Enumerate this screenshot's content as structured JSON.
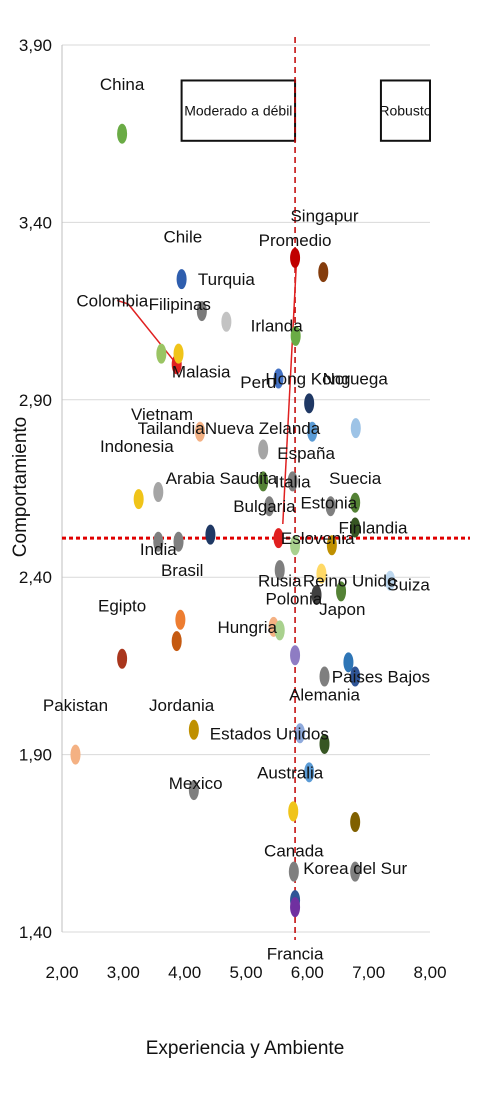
{
  "chart_data": {
    "type": "scatter",
    "xlabel": "Experiencia y Ambiente",
    "ylabel": "Comportamiento",
    "xlim": [
      2.0,
      8.0
    ],
    "ylim": [
      1.4,
      3.9
    ],
    "xticks": [
      "2,00",
      "3,00",
      "4,00",
      "5,00",
      "6,00",
      "7,00",
      "8,00"
    ],
    "yticks": [
      "1,40",
      "1,90",
      "2,40",
      "2,90",
      "3,40",
      "3,90"
    ],
    "xtick_values": [
      2,
      3,
      4,
      5,
      6,
      7,
      8
    ],
    "ytick_values": [
      1.4,
      1.9,
      2.4,
      2.9,
      3.4,
      3.9
    ],
    "grid": "horizontal",
    "reference_lines": {
      "x": 5.8,
      "y": 2.51
    },
    "boxes": [
      {
        "label": "Moderado a débil",
        "x": [
          3.95,
          5.8
        ],
        "y": [
          3.63,
          3.8
        ]
      },
      {
        "label": "Robusto",
        "x": [
          7.2,
          8.0
        ],
        "y": [
          3.63,
          3.8
        ]
      }
    ],
    "points": [
      {
        "label": "China",
        "x": 2.98,
        "y": 3.65,
        "color": "#6aab45",
        "lx": 2.98,
        "ly": 3.79
      },
      {
        "label": "Chile",
        "x": 3.95,
        "y": 3.24,
        "color": "#2f5eae",
        "lx": 3.97,
        "ly": 3.36
      },
      {
        "label": "Turquia",
        "x": 4.68,
        "y": 3.12,
        "color": "#c3c3c3",
        "lx": 4.68,
        "ly": 3.24
      },
      {
        "label": "Filipinas",
        "x": 4.28,
        "y": 3.15,
        "color": "#7a7a7a",
        "lx": 3.92,
        "ly": 3.17
      },
      {
        "label": "Colombia",
        "x": 3.87,
        "y": 3.0,
        "color": "#e02020",
        "lx": 2.82,
        "ly": 3.18
      },
      {
        "label": "Malasia",
        "x": 3.9,
        "y": 3.03,
        "color": "#f0c419",
        "lx": 4.27,
        "ly": 2.98
      },
      {
        "label": "Singapur",
        "x": 6.26,
        "y": 3.26,
        "color": "#843c0c",
        "lx": 6.28,
        "ly": 3.42
      },
      {
        "label": "Promedio",
        "x": 5.8,
        "y": 3.3,
        "color": "#c00000",
        "lx": 5.8,
        "ly": 3.35
      },
      {
        "label": "Irlanda",
        "x": 5.81,
        "y": 3.08,
        "color": "#6aab45",
        "lx": 5.5,
        "ly": 3.11
      },
      {
        "label": "Peru",
        "x": 5.53,
        "y": 2.96,
        "color": "#4472c4",
        "lx": 5.2,
        "ly": 2.95
      },
      {
        "label": "Hong Kong",
        "x": 6.03,
        "y": 2.89,
        "color": "#1f3864",
        "lx": 6.01,
        "ly": 2.96
      },
      {
        "label": "Noruega",
        "x": 6.79,
        "y": 2.82,
        "color": "#9dc3e6",
        "lx": 6.78,
        "ly": 2.96
      },
      {
        "label": "Vietnam",
        "x": 3.62,
        "y": 3.03,
        "color": "#9ac463",
        "lx": 3.63,
        "ly": 2.86
      },
      {
        "label": "Tailandia",
        "x": 4.25,
        "y": 2.81,
        "color": "#f4b183",
        "lx": 3.78,
        "ly": 2.82
      },
      {
        "label": "Indonesia",
        "x": 3.57,
        "y": 2.64,
        "color": "#a5a5a5",
        "lx": 3.22,
        "ly": 2.77
      },
      {
        "label": "Nueva Zelanda",
        "x": 5.28,
        "y": 2.76,
        "color": "#a5a5a5",
        "lx": 5.27,
        "ly": 2.82
      },
      {
        "label": "España",
        "x": 6.08,
        "y": 2.81,
        "color": "#5b9bd5",
        "lx": 5.98,
        "ly": 2.75
      },
      {
        "label": "Arabia Saudita",
        "x": 5.28,
        "y": 2.67,
        "color": "#548235",
        "lx": 4.6,
        "ly": 2.68
      },
      {
        "label": "Italia",
        "x": 5.76,
        "y": 2.67,
        "color": "#7f7f7f",
        "lx": 5.76,
        "ly": 2.67
      },
      {
        "label": "Suecia",
        "x": 6.78,
        "y": 2.61,
        "color": "#548235",
        "lx": 6.78,
        "ly": 2.68
      },
      {
        "label": "Bulgaria",
        "x": 5.38,
        "y": 2.6,
        "color": "#7f7f7f",
        "lx": 5.3,
        "ly": 2.6
      },
      {
        "label": "Estonia",
        "x": 6.38,
        "y": 2.6,
        "color": "#7f7f7f",
        "lx": 6.35,
        "ly": 2.61
      },
      {
        "label": "",
        "x": 3.25,
        "y": 2.62,
        "color": "#f0c419"
      },
      {
        "label": "",
        "x": 4.42,
        "y": 2.52,
        "color": "#1f3864"
      },
      {
        "label": "",
        "x": 5.53,
        "y": 2.51,
        "color": "#e02020"
      },
      {
        "label": "Finlandia",
        "x": 6.78,
        "y": 2.54,
        "color": "#375623",
        "lx": 7.07,
        "ly": 2.54
      },
      {
        "label": "Eslovenia",
        "x": 5.8,
        "y": 2.49,
        "color": "#a9d18e",
        "lx": 6.17,
        "ly": 2.51
      },
      {
        "label": "",
        "x": 6.4,
        "y": 2.49,
        "color": "#bf9000"
      },
      {
        "label": "India",
        "x": 3.57,
        "y": 2.5,
        "color": "#7f7f7f",
        "lx": 3.57,
        "ly": 2.48
      },
      {
        "label": "Brasil",
        "x": 3.9,
        "y": 2.5,
        "color": "#7f7f7f",
        "lx": 3.96,
        "ly": 2.42
      },
      {
        "label": "Rusia",
        "x": 5.55,
        "y": 2.42,
        "color": "#7f7f7f",
        "lx": 5.55,
        "ly": 2.39
      },
      {
        "label": "Reino Unido",
        "x": 6.23,
        "y": 2.41,
        "color": "#ffd966",
        "lx": 6.69,
        "ly": 2.39
      },
      {
        "label": "Suiza",
        "x": 7.35,
        "y": 2.39,
        "color": "#bdd7ee",
        "lx": 7.65,
        "ly": 2.38
      },
      {
        "label": "Polonia",
        "x": 6.15,
        "y": 2.35,
        "color": "#404040",
        "lx": 5.78,
        "ly": 2.34
      },
      {
        "label": "Japon",
        "x": 6.55,
        "y": 2.36,
        "color": "#548235",
        "lx": 6.57,
        "ly": 2.31
      },
      {
        "label": "Egipto",
        "x": 2.98,
        "y": 2.17,
        "color": "#a9361d",
        "lx": 2.98,
        "ly": 2.32
      },
      {
        "label": "",
        "x": 3.93,
        "y": 2.28,
        "color": "#ed7d31"
      },
      {
        "label": "",
        "x": 3.87,
        "y": 2.22,
        "color": "#c55a11"
      },
      {
        "label": "Hungria",
        "x": 5.45,
        "y": 2.26,
        "color": "#f4b183",
        "lx": 5.02,
        "ly": 2.26
      },
      {
        "label": "",
        "x": 5.55,
        "y": 2.25,
        "color": "#a9d18e"
      },
      {
        "label": "",
        "x": 5.8,
        "y": 2.18,
        "color": "#8e7cc3"
      },
      {
        "label": "",
        "x": 6.67,
        "y": 2.16,
        "color": "#2e75b6"
      },
      {
        "label": "Paises Bajos",
        "x": 6.78,
        "y": 2.12,
        "color": "#2f5597",
        "lx": 7.2,
        "ly": 2.12
      },
      {
        "label": "Alemania",
        "x": 6.28,
        "y": 2.12,
        "color": "#7f7f7f",
        "lx": 6.28,
        "ly": 2.07
      },
      {
        "label": "Pakistan",
        "x": 2.22,
        "y": 1.9,
        "color": "#f4b183",
        "lx": 2.22,
        "ly": 2.04
      },
      {
        "label": "Jordania",
        "x": 4.15,
        "y": 1.97,
        "color": "#bf9000",
        "lx": 3.95,
        "ly": 2.04
      },
      {
        "label": "Estados Unidos",
        "x": 5.88,
        "y": 1.96,
        "color": "#8faadc",
        "lx": 5.38,
        "ly": 1.96
      },
      {
        "label": "",
        "x": 6.28,
        "y": 1.93,
        "color": "#375623"
      },
      {
        "label": "Australia",
        "x": 6.03,
        "y": 1.85,
        "color": "#5b9bd5",
        "lx": 5.72,
        "ly": 1.85
      },
      {
        "label": "Mexico",
        "x": 4.15,
        "y": 1.8,
        "color": "#7f7f7f",
        "lx": 4.18,
        "ly": 1.82
      },
      {
        "label": "",
        "x": 5.77,
        "y": 1.74,
        "color": "#f0c419"
      },
      {
        "label": "",
        "x": 6.78,
        "y": 1.71,
        "color": "#806000"
      },
      {
        "label": "Canada",
        "x": 5.78,
        "y": 1.57,
        "color": "#7f7f7f",
        "lx": 5.78,
        "ly": 1.63
      },
      {
        "label": "Korea del Sur",
        "x": 6.78,
        "y": 1.57,
        "color": "#7f7f7f",
        "lx": 6.78,
        "ly": 1.58
      },
      {
        "label": "",
        "x": 5.8,
        "y": 1.49,
        "color": "#2f5597"
      },
      {
        "label": "Francia",
        "x": 5.8,
        "y": 1.47,
        "color": "#7030a0",
        "lx": 5.8,
        "ly": 1.34
      }
    ],
    "connectors": [
      {
        "from": [
          2.9,
          3.18
        ],
        "to": [
          3.08,
          3.17
        ]
      },
      {
        "from": [
          3.08,
          3.17
        ],
        "to": [
          3.87,
          3.0
        ]
      },
      {
        "from": [
          5.82,
          3.28
        ],
        "to": [
          5.6,
          2.55
        ]
      }
    ]
  }
}
